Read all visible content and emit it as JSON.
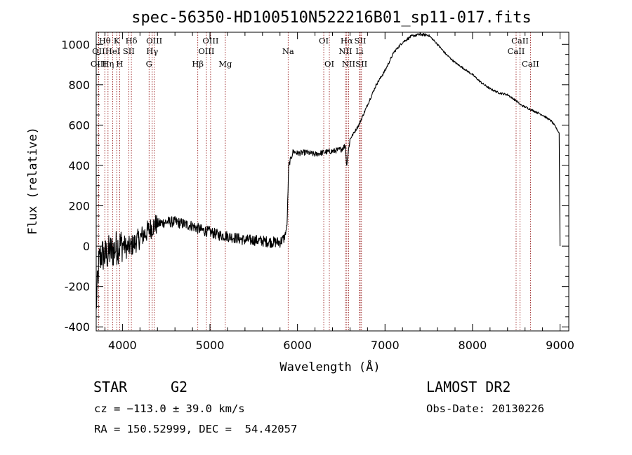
{
  "chart_data": {
    "type": "line",
    "title": "spec-56350-HD100510N522216B01_sp11-017.fits",
    "xlabel": "Wavelength (Å)",
    "ylabel": "Flux (relative)",
    "xlim": [
      3700,
      9100
    ],
    "ylim": [
      -420,
      1060
    ],
    "xticks": [
      4000,
      5000,
      6000,
      7000,
      8000,
      9000
    ],
    "yticks": [
      -400,
      -200,
      0,
      200,
      400,
      600,
      800,
      1000
    ],
    "series": [
      {
        "name": "flux",
        "x": [
          3700,
          3730,
          3760,
          3800,
          3850,
          3900,
          3950,
          4000,
          4050,
          4100,
          4150,
          4200,
          4250,
          4300,
          4350,
          4400,
          4500,
          4600,
          4700,
          4800,
          4900,
          5000,
          5100,
          5200,
          5300,
          5400,
          5500,
          5600,
          5700,
          5800,
          5850,
          5880,
          5900,
          5950,
          6000,
          6100,
          6200,
          6300,
          6400,
          6500,
          6550,
          6560,
          6600,
          6700,
          6800,
          6900,
          7000,
          7100,
          7200,
          7300,
          7400,
          7500,
          7600,
          7700,
          7800,
          7900,
          8000,
          8100,
          8200,
          8300,
          8400,
          8500,
          8550,
          8600,
          8700,
          8800,
          8900,
          8950,
          8990,
          9000
        ],
        "y": [
          -300,
          -80,
          -40,
          -50,
          -30,
          -20,
          0,
          10,
          -10,
          0,
          20,
          40,
          60,
          80,
          100,
          110,
          120,
          120,
          110,
          100,
          80,
          70,
          55,
          50,
          40,
          30,
          30,
          25,
          20,
          20,
          40,
          100,
          400,
          470,
          460,
          465,
          455,
          465,
          470,
          480,
          500,
          400,
          530,
          600,
          700,
          800,
          870,
          960,
          1010,
          1040,
          1050,
          1045,
          1000,
          950,
          910,
          880,
          850,
          810,
          780,
          760,
          750,
          720,
          700,
          690,
          670,
          650,
          620,
          590,
          560,
          0
        ]
      }
    ],
    "spectral_lines": [
      {
        "label": "Hθ",
        "x": 3798,
        "row": 1
      },
      {
        "label": "OII",
        "x": 3727,
        "row": 2
      },
      {
        "label": "OIII",
        "x": 3727,
        "row": 3
      },
      {
        "label": "K",
        "x": 3934,
        "row": 1
      },
      {
        "label": "HeI",
        "x": 3889,
        "row": 2
      },
      {
        "label": "Hη",
        "x": 3835,
        "row": 3
      },
      {
        "label": "H",
        "x": 3968,
        "row": 3
      },
      {
        "label": "Hδ",
        "x": 4102,
        "row": 1
      },
      {
        "label": "SII",
        "x": 4072,
        "row": 2
      },
      {
        "label": "OIII",
        "x": 4363,
        "row": 1
      },
      {
        "label": "Hγ",
        "x": 4340,
        "row": 2
      },
      {
        "label": "G",
        "x": 4304,
        "row": 3
      },
      {
        "label": "Hβ",
        "x": 4861,
        "row": 3
      },
      {
        "label": "OIII",
        "x": 5007,
        "row": 1
      },
      {
        "label": "OIII",
        "x": 4959,
        "row": 2
      },
      {
        "label": "Mg",
        "x": 5175,
        "row": 3
      },
      {
        "label": "Na",
        "x": 5893,
        "row": 2
      },
      {
        "label": "OI",
        "x": 6300,
        "row": 1
      },
      {
        "label": "OI",
        "x": 6364,
        "row": 3
      },
      {
        "label": "Hα",
        "x": 6563,
        "row": 1
      },
      {
        "label": "SII",
        "x": 6717,
        "row": 1
      },
      {
        "label": "NII",
        "x": 6548,
        "row": 2
      },
      {
        "label": "Li",
        "x": 6708,
        "row": 2
      },
      {
        "label": "NII",
        "x": 6584,
        "row": 3
      },
      {
        "label": "SII",
        "x": 6731,
        "row": 3
      },
      {
        "label": "CaII",
        "x": 8542,
        "row": 1
      },
      {
        "label": "CaII",
        "x": 8498,
        "row": 2
      },
      {
        "label": "CaII",
        "x": 8662,
        "row": 3
      }
    ],
    "line_color": "#8b0000"
  },
  "info": {
    "object_type": "STAR",
    "subclass": "G2",
    "survey": "LAMOST DR2",
    "cz": "cz = −113.0 ± 39.0 km/s",
    "obs_date": "Obs-Date: 20130226",
    "coords": "RA = 150.52999, DEC =  54.42057"
  }
}
